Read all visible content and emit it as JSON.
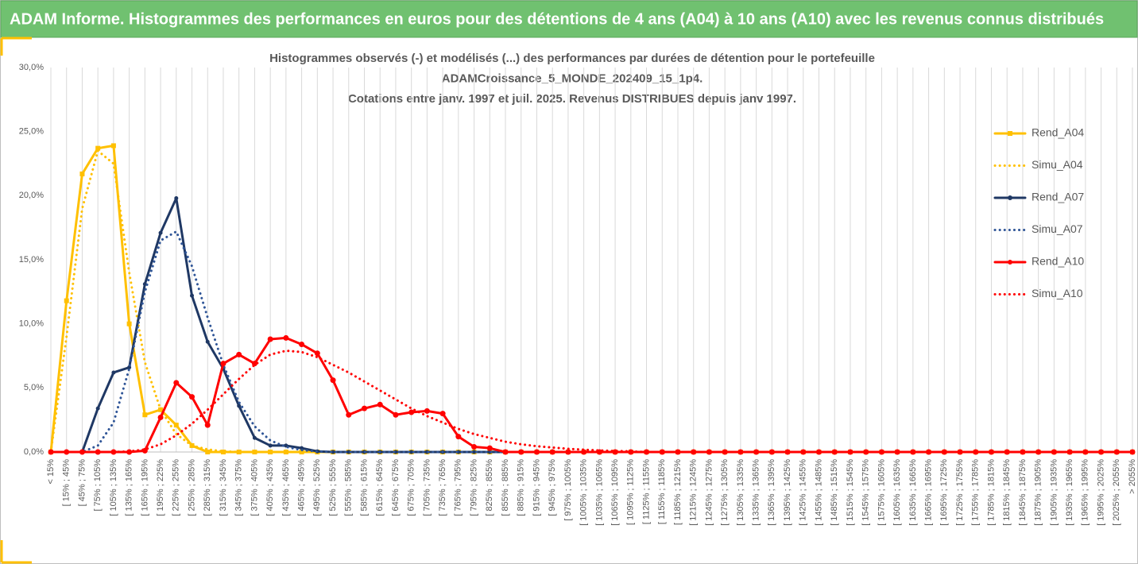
{
  "header": {
    "title": "ADAM Informe. Histogrammes des performances en euros pour des détentions de 4 ans (A04) à 10 ans (A10) avec les revenus connus distribués"
  },
  "chart_data": {
    "type": "line",
    "title_lines": [
      "Histogrammes observés (-) et modélisés (...) des performances par durées de détention pour le portefeuille",
      "ADAMCroissance_5_MONDE_202409_15_1p4.",
      "Cotations entre janv. 1997 et juil. 2025. Revenus DISTRIBUES depuis janv 1997."
    ],
    "categories": [
      "< 15%",
      "[ 15% ; 45%",
      "[ 45% ; 75%",
      "[ 75% ; 105%",
      "[ 105% ; 135%",
      "[ 135% ; 165%",
      "[ 165% ; 195%",
      "[ 195% ; 225%",
      "[ 225% ; 255%",
      "[ 255% ; 285%",
      "[ 285% ; 315%",
      "[ 315% ; 345%",
      "[ 345% ; 375%",
      "[ 375% ; 405%",
      "[ 405% ; 435%",
      "[ 435% ; 465%",
      "[ 465% ; 495%",
      "[ 495% ; 525%",
      "[ 525% ; 555%",
      "[ 555% ; 585%",
      "[ 585% ; 615%",
      "[ 615% ; 645%",
      "[ 645% ; 675%",
      "[ 675% ; 705%",
      "[ 705% ; 735%",
      "[ 735% ; 765%",
      "[ 765% ; 795%",
      "[ 795% ; 825%",
      "[ 825% ; 855%",
      "[ 855% ; 885%",
      "[ 885% ; 915%",
      "[ 915% ; 945%",
      "[ 945% ; 975%",
      "[ 975% ; 1005%",
      "[ 1005% ; 1035%",
      "[ 1035% ; 1065%",
      "[ 1065% ; 1095%",
      "[ 1095% ; 1125%",
      "[ 1125% ; 1155%",
      "[ 1155% ; 1185%",
      "[ 1185% ; 1215%",
      "[ 1215% ; 1245%",
      "[ 1245% ; 1275%",
      "[ 1275% ; 1305%",
      "[ 1305% ; 1335%",
      "[ 1335% ; 1365%",
      "[ 1365% ; 1395%",
      "[ 1395% ; 1425%",
      "[ 1425% ; 1455%",
      "[ 1455% ; 1485%",
      "[ 1485% ; 1515%",
      "[ 1515% ; 1545%",
      "[ 1545% ; 1575%",
      "[ 1575% ; 1605%",
      "[ 1605% ; 1635%",
      "[ 1635% ; 1665%",
      "[ 1665% ; 1695%",
      "[ 1695% ; 1725%",
      "[ 1725% ; 1755%",
      "[ 1755% ; 1785%",
      "[ 1785% ; 1815%",
      "[ 1815% ; 1845%",
      "[ 1845% ; 1875%",
      "[ 1875% ; 1905%",
      "[ 1905% ; 1935%",
      "[ 1935% ; 1965%",
      "[ 1965% ; 1995%",
      "[ 1995% ; 2025%",
      "[ 2025% ; 2055%",
      "> 2055%"
    ],
    "series": [
      {
        "name": "Rend_A04",
        "color": "#ffc000",
        "style": "solid",
        "marker": "square",
        "values": [
          0,
          11.8,
          21.7,
          23.7,
          23.9,
          10.0,
          2.9,
          3.3,
          2.1,
          0.5,
          0,
          0,
          0,
          0,
          0,
          0,
          0,
          0,
          0,
          0,
          0,
          0,
          0,
          0,
          0,
          0,
          0,
          0,
          0,
          0,
          0,
          0,
          0,
          0,
          0,
          0,
          0,
          0,
          0,
          0,
          0,
          0,
          0,
          0,
          0,
          0,
          0,
          0,
          0,
          0,
          0,
          0,
          0,
          0,
          0,
          0,
          0,
          0,
          0,
          0,
          0,
          0,
          0,
          0,
          0,
          0,
          0,
          0,
          0,
          0
        ]
      },
      {
        "name": "Simu_A04",
        "color": "#ffc000",
        "style": "dotted",
        "marker": "none",
        "values": [
          0,
          9.0,
          19.0,
          23.5,
          22.5,
          14.0,
          7.0,
          3.3,
          1.4,
          0.5,
          0.2,
          0.05,
          0,
          0,
          0,
          0,
          0,
          0,
          0,
          0,
          0,
          0,
          0,
          0,
          0,
          0,
          0,
          0,
          0,
          0,
          0,
          0,
          0,
          0,
          0,
          0,
          0,
          0,
          0,
          0,
          0,
          0,
          0,
          0,
          0,
          0,
          0,
          0,
          0,
          0,
          0,
          0,
          0,
          0,
          0,
          0,
          0,
          0,
          0,
          0,
          0,
          0,
          0,
          0,
          0,
          0,
          0,
          0,
          0,
          0
        ]
      },
      {
        "name": "Rend_A07",
        "color": "#1f3864",
        "style": "solid",
        "marker": "circle",
        "values": [
          0,
          0,
          0,
          3.4,
          6.2,
          6.6,
          13.1,
          17.1,
          19.8,
          12.2,
          8.6,
          6.5,
          3.6,
          1.1,
          0.5,
          0.5,
          0.3,
          0.05,
          0,
          0,
          0,
          0,
          0,
          0,
          0,
          0,
          0,
          0,
          0,
          0,
          0,
          0,
          0,
          0,
          0,
          0,
          0,
          0,
          0,
          0,
          0,
          0,
          0,
          0,
          0,
          0,
          0,
          0,
          0,
          0,
          0,
          0,
          0,
          0,
          0,
          0,
          0,
          0,
          0,
          0,
          0,
          0,
          0,
          0,
          0,
          0,
          0,
          0,
          0,
          0
        ]
      },
      {
        "name": "Simu_A07",
        "color": "#2f5597",
        "style": "dotted",
        "marker": "none",
        "values": [
          0,
          0,
          0,
          0.5,
          2.3,
          6.5,
          12.5,
          16.5,
          17.2,
          14.5,
          10.5,
          6.8,
          3.9,
          2.0,
          0.9,
          0.4,
          0.15,
          0.05,
          0,
          0,
          0,
          0,
          0,
          0,
          0,
          0,
          0,
          0,
          0,
          0,
          0,
          0,
          0,
          0,
          0,
          0,
          0,
          0,
          0,
          0,
          0,
          0,
          0,
          0,
          0,
          0,
          0,
          0,
          0,
          0,
          0,
          0,
          0,
          0,
          0,
          0,
          0,
          0,
          0,
          0,
          0,
          0,
          0,
          0,
          0,
          0,
          0,
          0,
          0,
          0
        ]
      },
      {
        "name": "Rend_A10",
        "color": "#ff0000",
        "style": "solid",
        "marker": "circle",
        "values": [
          0,
          0,
          0,
          0,
          0,
          0,
          0.1,
          2.7,
          5.4,
          4.3,
          2.1,
          6.9,
          7.6,
          6.9,
          8.8,
          8.9,
          8.4,
          7.7,
          5.6,
          2.9,
          3.4,
          3.7,
          2.9,
          3.1,
          3.2,
          3.0,
          1.2,
          0.4,
          0.3,
          0,
          0,
          0,
          0,
          0,
          0,
          0,
          0,
          0,
          0,
          0,
          0,
          0,
          0,
          0,
          0,
          0,
          0,
          0,
          0,
          0,
          0,
          0,
          0,
          0,
          0,
          0,
          0,
          0,
          0,
          0,
          0,
          0,
          0,
          0,
          0,
          0,
          0,
          0,
          0,
          0
        ]
      },
      {
        "name": "Simu_A10",
        "color": "#ff0000",
        "style": "dotted",
        "marker": "none",
        "values": [
          0,
          0,
          0,
          0,
          0,
          0.05,
          0.2,
          0.6,
          1.3,
          2.2,
          3.3,
          4.5,
          5.7,
          6.8,
          7.6,
          7.9,
          7.8,
          7.4,
          6.8,
          6.2,
          5.5,
          4.8,
          4.1,
          3.4,
          2.8,
          2.3,
          1.8,
          1.4,
          1.1,
          0.8,
          0.6,
          0.45,
          0.35,
          0.25,
          0.18,
          0.12,
          0.08,
          0.05,
          0,
          0,
          0,
          0,
          0,
          0,
          0,
          0,
          0,
          0,
          0,
          0,
          0,
          0,
          0,
          0,
          0,
          0,
          0,
          0,
          0,
          0,
          0,
          0,
          0,
          0,
          0,
          0,
          0,
          0,
          0,
          0
        ]
      }
    ],
    "ylim": [
      0,
      30
    ],
    "yticks": [
      {
        "value": 0,
        "label": "0,0%"
      },
      {
        "value": 5,
        "label": "5,0%"
      },
      {
        "value": 10,
        "label": "10,0%"
      },
      {
        "value": 15,
        "label": "15,0%"
      },
      {
        "value": 20,
        "label": "20,0%"
      },
      {
        "value": 25,
        "label": "25,0%"
      },
      {
        "value": 30,
        "label": "30,0%"
      }
    ],
    "xgrid": true,
    "ygrid": false,
    "legend": "right"
  }
}
